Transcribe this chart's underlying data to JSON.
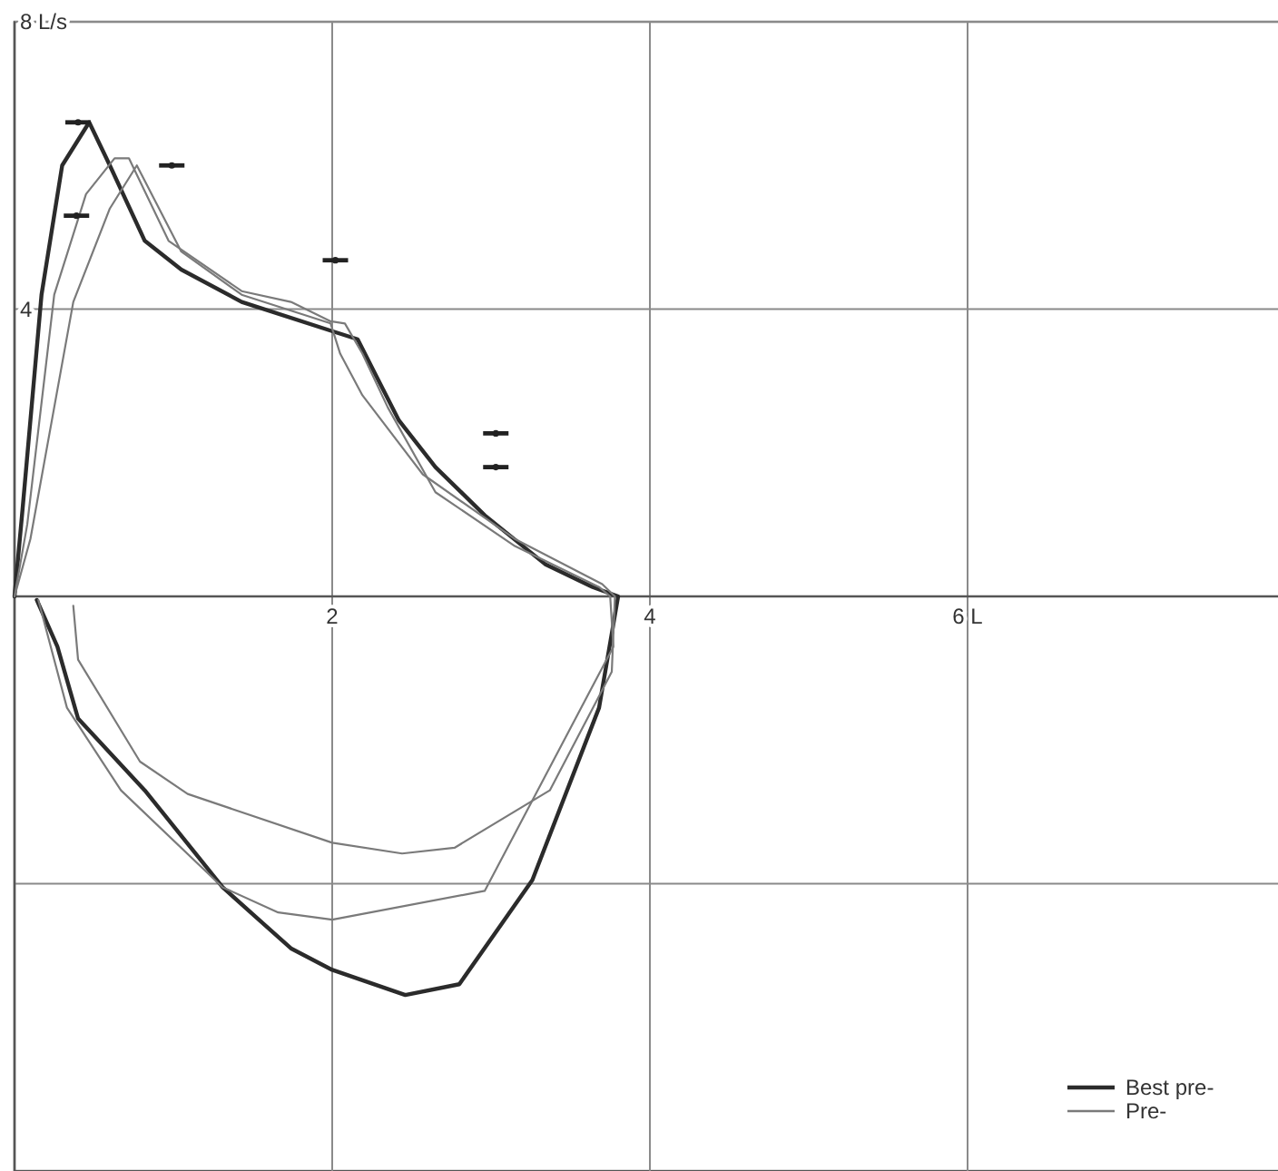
{
  "chart_data": {
    "type": "line",
    "xlim": [
      0,
      8
    ],
    "ylim": [
      -8,
      8
    ],
    "xticks": [
      {
        "value": 2,
        "label": "2"
      },
      {
        "value": 4,
        "label": "4"
      },
      {
        "value": 6,
        "label": "6 L"
      }
    ],
    "yticks": [
      {
        "value": -4,
        "label": null
      },
      {
        "value": 4,
        "label": "4"
      },
      {
        "value": 8,
        "label": "8 L/s"
      }
    ],
    "grid": true,
    "legend": "bottom right",
    "line_style": "solid",
    "series": [
      {
        "name": "Best pre-",
        "color": "#2b2b2b",
        "x": [
          0,
          0.05,
          0.17,
          0.3,
          0.47,
          0.6,
          0.82,
          1.05,
          1.43,
          1.99,
          2.16,
          2.27,
          2.42,
          2.65,
          2.96,
          3.34,
          3.64,
          3.8,
          3.68,
          3.26,
          2.8,
          2.46,
          2.0,
          1.74,
          1.31,
          0.82,
          0.4,
          0.27,
          0.14
        ],
        "values": [
          0,
          1.2,
          4.2,
          6.0,
          6.6,
          6.0,
          4.95,
          4.55,
          4.1,
          3.7,
          3.58,
          3.1,
          2.45,
          1.8,
          1.13,
          0.45,
          0.13,
          0,
          -1.55,
          -3.95,
          -5.4,
          -5.55,
          -5.2,
          -4.9,
          -4.05,
          -2.7,
          -1.7,
          -0.7,
          -0.05
        ]
      },
      {
        "name": "Pre-",
        "color": "#7a7a7a",
        "x": [
          0,
          0.08,
          0.25,
          0.45,
          0.63,
          0.72,
          0.97,
          1.43,
          1.74,
          1.99,
          2.08,
          2.19,
          2.35,
          2.65,
          3.15,
          3.68,
          3.75,
          3.77,
          2.96,
          2.0,
          1.66,
          1.31,
          0.67,
          0.33,
          0.15
        ],
        "values": [
          0,
          1.0,
          4.2,
          5.6,
          6.1,
          6.1,
          4.95,
          4.25,
          4.1,
          3.83,
          3.8,
          3.38,
          2.63,
          1.45,
          0.7,
          0.13,
          0,
          -0.7,
          -4.1,
          -4.5,
          -4.4,
          -4.05,
          -2.7,
          -1.55,
          -0.05
        ]
      },
      {
        "color": "#7a7a7a",
        "x": [
          0,
          0.1,
          0.37,
          0.6,
          0.77,
          1.05,
          1.43,
          1.99,
          2.05,
          2.19,
          2.57,
          3.15,
          3.7,
          3.78,
          3.76,
          3.37,
          2.77,
          2.44,
          2.0,
          1.09,
          0.79,
          0.4,
          0.37
        ],
        "values": [
          0,
          0.8,
          4.1,
          5.4,
          6.0,
          4.8,
          4.2,
          3.8,
          3.38,
          2.8,
          1.7,
          0.8,
          0.17,
          0,
          -1.05,
          -2.7,
          -3.5,
          -3.58,
          -3.43,
          -2.75,
          -2.3,
          -0.88,
          -0.13
        ]
      },
      {
        "type": "scatter",
        "color": "#222222",
        "x": [
          0.4,
          0.99,
          0.39,
          2.02,
          3.03,
          3.03
        ],
        "values": [
          6.6,
          6.0,
          5.3,
          4.68,
          2.27,
          1.8
        ],
        "xerrors": [
          0.08,
          0.08,
          0.08,
          0.08,
          0.08,
          0.08
        ]
      }
    ]
  }
}
